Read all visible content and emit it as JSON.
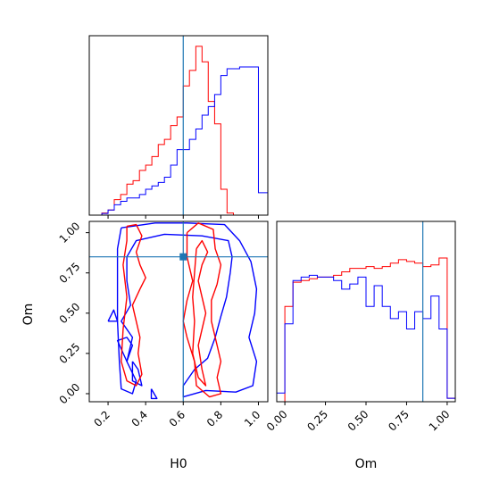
{
  "colors": {
    "series_a": "#ff0000",
    "series_b": "#0000ff",
    "truth": "#1f77b4"
  },
  "chart_data": [
    {
      "panel": "H0 marginal",
      "type": "histogram",
      "xlim": [
        0.1,
        1.05
      ],
      "ylim": [
        0,
        1
      ],
      "bin_edges": [
        0.1,
        0.133,
        0.167,
        0.2,
        0.233,
        0.267,
        0.3,
        0.333,
        0.367,
        0.4,
        0.433,
        0.467,
        0.5,
        0.533,
        0.567,
        0.6,
        0.633,
        0.667,
        0.7,
        0.733,
        0.767,
        0.8,
        0.833,
        0.867,
        0.9,
        0.933,
        0.967,
        1.0,
        1.033,
        1.05
      ],
      "series": [
        {
          "color": "#ff0000",
          "values": [
            0,
            0,
            0.012,
            0.03,
            0.09,
            0.12,
            0.18,
            0.2,
            0.26,
            0.29,
            0.34,
            0.41,
            0.44,
            0.52,
            0.57,
            0.75,
            0.84,
            0.98,
            0.89,
            0.66,
            0.53,
            0.15,
            0.012,
            0,
            0,
            0,
            0,
            0,
            0
          ]
        },
        {
          "color": "#0000ff",
          "values": [
            0,
            0,
            0.01,
            0.03,
            0.06,
            0.08,
            0.1,
            0.1,
            0.12,
            0.15,
            0.17,
            0.19,
            0.22,
            0.29,
            0.38,
            0.38,
            0.44,
            0.5,
            0.58,
            0.63,
            0.7,
            0.81,
            0.85,
            0.85,
            0.86,
            0.86,
            0.86,
            0.13,
            0.13
          ]
        }
      ],
      "truth_x": 0.6
    },
    {
      "panel": "H0 vs Om",
      "type": "contour",
      "xlabel": "H0",
      "ylabel": "Om",
      "xlim": [
        0.1,
        1.05
      ],
      "ylim": [
        -0.05,
        1.07
      ],
      "xticks": [
        "0.2",
        "0.4",
        "0.6",
        "0.8",
        "1.0"
      ],
      "yticks": [
        "0.00",
        "0.25",
        "0.50",
        "0.75",
        "1.00"
      ],
      "truth_point": [
        0.6,
        0.85
      ],
      "series": [
        {
          "color": "#0000ff",
          "contours": [
            [
              [
                0.27,
                1.03
              ],
              [
                0.45,
                1.06
              ],
              [
                0.62,
                1.06
              ],
              [
                0.82,
                1.05
              ],
              [
                0.9,
                0.95
              ],
              [
                0.96,
                0.82
              ],
              [
                0.99,
                0.65
              ],
              [
                0.98,
                0.5
              ],
              [
                0.95,
                0.35
              ],
              [
                0.99,
                0.2
              ],
              [
                0.97,
                0.05
              ],
              [
                0.88,
                0.01
              ],
              [
                0.72,
                0.02
              ],
              [
                0.6,
                -0.02
              ],
              [
                0.6,
                0.05
              ],
              [
                0.66,
                0.15
              ],
              [
                0.73,
                0.22
              ],
              [
                0.77,
                0.35
              ],
              [
                0.8,
                0.48
              ],
              [
                0.83,
                0.6
              ],
              [
                0.85,
                0.75
              ],
              [
                0.86,
                0.85
              ],
              [
                0.84,
                0.95
              ],
              [
                0.7,
                0.98
              ],
              [
                0.5,
                0.99
              ],
              [
                0.35,
                0.95
              ],
              [
                0.3,
                0.85
              ],
              [
                0.3,
                0.7
              ],
              [
                0.32,
                0.55
              ],
              [
                0.27,
                0.45
              ],
              [
                0.33,
                0.35
              ],
              [
                0.3,
                0.2
              ],
              [
                0.35,
                0.08
              ],
              [
                0.33,
                0.0
              ],
              [
                0.27,
                0.03
              ],
              [
                0.26,
                0.2
              ],
              [
                0.25,
                0.45
              ],
              [
                0.25,
                0.7
              ],
              [
                0.25,
                0.9
              ],
              [
                0.27,
                1.03
              ]
            ],
            [
              [
                0.3,
                0.2
              ],
              [
                0.33,
                0.3
              ],
              [
                0.3,
                0.35
              ],
              [
                0.25,
                0.33
              ],
              [
                0.3,
                0.2
              ]
            ],
            [
              [
                0.33,
                0.2
              ],
              [
                0.36,
                0.15
              ],
              [
                0.38,
                0.05
              ],
              [
                0.33,
                0.08
              ],
              [
                0.33,
                0.2
              ]
            ],
            [
              [
                0.2,
                0.45
              ],
              [
                0.23,
                0.52
              ],
              [
                0.25,
                0.45
              ],
              [
                0.2,
                0.45
              ]
            ],
            [
              [
                0.43,
                0.03
              ],
              [
                0.46,
                -0.03
              ],
              [
                0.43,
                -0.03
              ],
              [
                0.43,
                0.03
              ]
            ]
          ]
        },
        {
          "color": "#ff0000",
          "contours": [
            [
              [
                0.3,
                1.04
              ],
              [
                0.35,
                1.05
              ],
              [
                0.38,
                0.98
              ],
              [
                0.35,
                0.88
              ],
              [
                0.37,
                0.8
              ],
              [
                0.4,
                0.72
              ],
              [
                0.37,
                0.65
              ],
              [
                0.33,
                0.55
              ],
              [
                0.35,
                0.45
              ],
              [
                0.37,
                0.35
              ],
              [
                0.36,
                0.25
              ],
              [
                0.38,
                0.12
              ],
              [
                0.35,
                0.05
              ],
              [
                0.3,
                0.08
              ],
              [
                0.27,
                0.2
              ],
              [
                0.28,
                0.4
              ],
              [
                0.3,
                0.6
              ],
              [
                0.28,
                0.8
              ],
              [
                0.3,
                0.95
              ],
              [
                0.3,
                1.04
              ]
            ],
            [
              [
                0.62,
                1.0
              ],
              [
                0.68,
                1.06
              ],
              [
                0.76,
                1.02
              ],
              [
                0.77,
                0.9
              ],
              [
                0.8,
                0.8
              ],
              [
                0.78,
                0.68
              ],
              [
                0.75,
                0.58
              ],
              [
                0.75,
                0.45
              ],
              [
                0.78,
                0.3
              ],
              [
                0.8,
                0.2
              ],
              [
                0.78,
                0.1
              ],
              [
                0.8,
                0.0
              ],
              [
                0.74,
                -0.02
              ],
              [
                0.67,
                0.05
              ],
              [
                0.66,
                0.2
              ],
              [
                0.62,
                0.35
              ],
              [
                0.6,
                0.45
              ],
              [
                0.62,
                0.58
              ],
              [
                0.65,
                0.7
              ],
              [
                0.62,
                0.85
              ],
              [
                0.62,
                1.0
              ]
            ],
            [
              [
                0.67,
                0.9
              ],
              [
                0.7,
                0.95
              ],
              [
                0.73,
                0.88
              ],
              [
                0.7,
                0.8
              ],
              [
                0.68,
                0.7
              ],
              [
                0.7,
                0.6
              ],
              [
                0.72,
                0.5
              ],
              [
                0.7,
                0.4
              ],
              [
                0.68,
                0.3
              ],
              [
                0.7,
                0.15
              ],
              [
                0.72,
                0.05
              ],
              [
                0.68,
                0.1
              ],
              [
                0.65,
                0.25
              ],
              [
                0.66,
                0.45
              ],
              [
                0.65,
                0.6
              ],
              [
                0.66,
                0.75
              ],
              [
                0.67,
                0.9
              ]
            ]
          ]
        }
      ]
    },
    {
      "panel": "Om marginal",
      "type": "histogram",
      "xlabel": "Om",
      "xlim": [
        -0.05,
        1.05
      ],
      "ylim": [
        0,
        1
      ],
      "xticks": [
        "0.00",
        "0.25",
        "0.50",
        "0.75",
        "1.00"
      ],
      "bin_edges": [
        -0.05,
        0.0,
        0.05,
        0.1,
        0.15,
        0.2,
        0.25,
        0.3,
        0.35,
        0.4,
        0.45,
        0.5,
        0.55,
        0.6,
        0.65,
        0.7,
        0.75,
        0.8,
        0.85,
        0.9,
        0.95,
        1.0,
        1.05
      ],
      "series": [
        {
          "color": "#ff0000",
          "values": [
            0,
            0.55,
            0.69,
            0.7,
            0.71,
            0.72,
            0.72,
            0.73,
            0.75,
            0.77,
            0.77,
            0.78,
            0.77,
            0.78,
            0.8,
            0.82,
            0.81,
            0.8,
            0.78,
            0.79,
            0.83,
            0.02
          ]
        },
        {
          "color": "#0000ff",
          "values": [
            0.05,
            0.45,
            0.7,
            0.72,
            0.73,
            0.72,
            0.72,
            0.7,
            0.65,
            0.68,
            0.72,
            0.55,
            0.67,
            0.55,
            0.48,
            0.52,
            0.42,
            0.52,
            0.48,
            0.61,
            0.42,
            0.02
          ]
        }
      ],
      "truth_x": 0.85
    }
  ]
}
